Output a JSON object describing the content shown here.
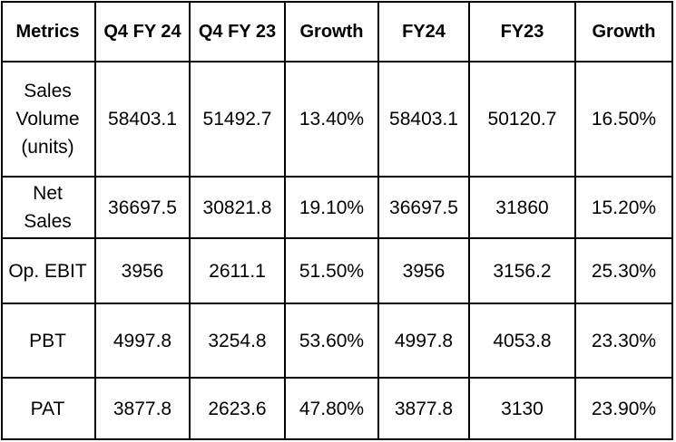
{
  "table": {
    "headers": [
      "Metrics",
      "Q4 FY 24",
      "Q4 FY 23",
      "Growth",
      "FY24",
      "FY23",
      "Growth"
    ],
    "rows": [
      {
        "metric_lines": [
          "Sales",
          "Volume",
          "(units)"
        ],
        "cells": [
          "58403.1",
          "51492.7",
          "13.40%",
          "58403.1",
          "50120.7",
          "16.50%"
        ]
      },
      {
        "metric_lines": [
          "Net",
          "Sales"
        ],
        "cells": [
          "36697.5",
          "30821.8",
          "19.10%",
          "36697.5",
          "31860",
          "15.20%"
        ]
      },
      {
        "metric_lines": [
          "Op. EBIT"
        ],
        "cells": [
          "3956",
          "2611.1",
          "51.50%",
          "3956",
          "3156.2",
          "25.30%"
        ]
      },
      {
        "metric_lines": [
          "PBT"
        ],
        "cells": [
          "4997.8",
          "3254.8",
          "53.60%",
          "4997.8",
          "4053.8",
          "23.30%"
        ]
      },
      {
        "metric_lines": [
          "PAT"
        ],
        "cells": [
          "3877.8",
          "2623.6",
          "47.80%",
          "3877.8",
          "3130",
          "23.90%"
        ]
      }
    ]
  }
}
